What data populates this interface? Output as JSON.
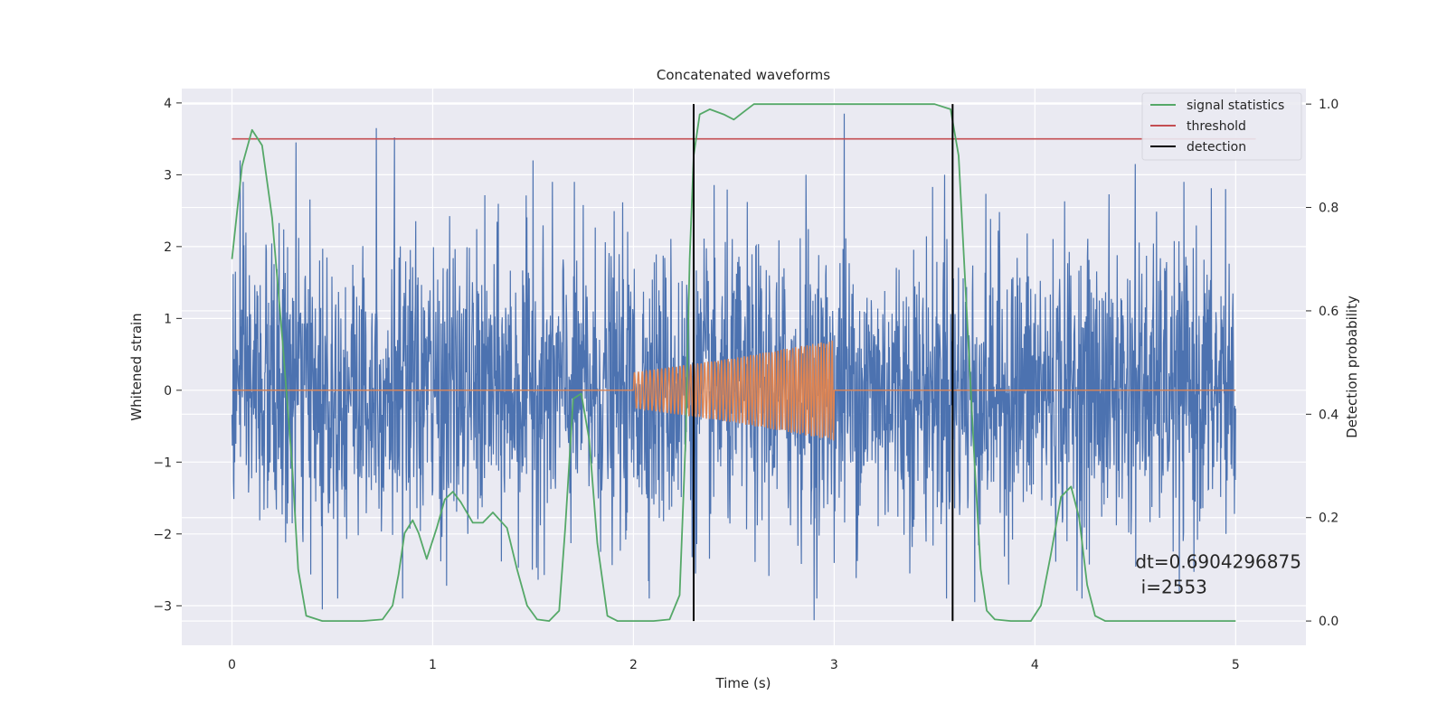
{
  "chart_data": {
    "type": "line",
    "title": "Concatenated waveforms",
    "xlabel": "Time (s)",
    "ylabel": "Whitened strain",
    "y2label": "Detection probability",
    "xlim": [
      -0.25,
      5.35
    ],
    "ylim": [
      -3.55,
      4.2
    ],
    "y2lim": [
      -0.047,
      1.03
    ],
    "xticks": [
      0,
      1,
      2,
      3,
      4,
      5
    ],
    "yticks": [
      -3,
      -2,
      -1,
      0,
      1,
      2,
      3,
      4
    ],
    "y2ticks": [
      0.0,
      0.2,
      0.4,
      0.6,
      0.8,
      1.0
    ],
    "y2ticklabels": [
      "0.0",
      "0.2",
      "0.4",
      "0.6",
      "0.8",
      "1.0"
    ],
    "ytick_minus_labels": [
      "−3",
      "−2",
      "−1",
      "0",
      "1",
      "2",
      "3",
      "4"
    ],
    "grid": true,
    "legend_placement": "upper-right",
    "colors": {
      "background": "#eaeaf2",
      "noise": "#4c72b0",
      "injection": "#dd8452",
      "signal_statistics": "#55a868",
      "threshold": "#c44e52",
      "detection": "#000000"
    },
    "series": [
      {
        "name": "",
        "role": "whitened-noise",
        "x_range": [
          0,
          5
        ],
        "amplitude_typical": 1.0,
        "peaks": [
          [
            0.04,
            3.2
          ],
          [
            0.32,
            3.45
          ],
          [
            0.72,
            3.65
          ],
          [
            0.81,
            3.52
          ],
          [
            1.5,
            3.2
          ],
          [
            2.86,
            3.0
          ],
          [
            3.05,
            3.85
          ],
          [
            3.55,
            3.0
          ],
          [
            4.5,
            3.15
          ],
          [
            4.95,
            2.8
          ]
        ],
        "troughs": [
          [
            0.45,
            -3.05
          ],
          [
            0.85,
            -2.9
          ],
          [
            2.9,
            -3.2
          ],
          [
            3.7,
            -2.95
          ],
          [
            4.72,
            -2.8
          ]
        ]
      },
      {
        "name": "",
        "role": "injected-chirp",
        "x": [
          0,
          2.0,
          2.0,
          2.5,
          3.0,
          3.0,
          5.0
        ],
        "envelope": [
          0,
          0,
          0.25,
          0.45,
          0.7,
          0,
          0
        ]
      },
      {
        "name": "signal statistics",
        "axis": "right",
        "x": [
          0,
          0.05,
          0.1,
          0.15,
          0.2,
          0.25,
          0.3,
          0.33,
          0.37,
          0.45,
          0.55,
          0.65,
          0.75,
          0.8,
          0.83,
          0.86,
          0.9,
          0.93,
          0.97,
          1.02,
          1.06,
          1.1,
          1.14,
          1.2,
          1.25,
          1.3,
          1.37,
          1.42,
          1.47,
          1.52,
          1.58,
          1.63,
          1.66,
          1.7,
          1.74,
          1.78,
          1.82,
          1.87,
          1.92,
          2.0,
          2.1,
          2.18,
          2.23,
          2.26,
          2.28,
          2.3,
          2.33,
          2.38,
          2.45,
          2.5,
          2.55,
          2.6,
          2.7,
          3.0,
          3.3,
          3.5,
          3.58,
          3.62,
          3.66,
          3.7,
          3.73,
          3.76,
          3.8,
          3.88,
          3.98,
          4.03,
          4.08,
          4.13,
          4.18,
          4.22,
          4.26,
          4.3,
          4.35,
          4.45,
          4.6,
          4.8,
          5.0
        ],
        "y": [
          0.7,
          0.88,
          0.95,
          0.92,
          0.78,
          0.55,
          0.3,
          0.1,
          0.01,
          0.0,
          0.0,
          0.0,
          0.003,
          0.03,
          0.09,
          0.17,
          0.195,
          0.17,
          0.12,
          0.18,
          0.235,
          0.25,
          0.23,
          0.19,
          0.19,
          0.21,
          0.18,
          0.1,
          0.03,
          0.003,
          0.0,
          0.02,
          0.18,
          0.43,
          0.44,
          0.35,
          0.15,
          0.01,
          0.0,
          0.0,
          0.0,
          0.003,
          0.05,
          0.35,
          0.7,
          0.9,
          0.98,
          0.99,
          0.98,
          0.97,
          0.985,
          1.0,
          1.0,
          1.0,
          1.0,
          1.0,
          0.99,
          0.9,
          0.6,
          0.3,
          0.1,
          0.02,
          0.003,
          0.0,
          0.0,
          0.03,
          0.13,
          0.24,
          0.26,
          0.2,
          0.07,
          0.01,
          0.0,
          0.0,
          0.0,
          0.0,
          0.0
        ]
      },
      {
        "name": "threshold",
        "axis": "left",
        "x": [
          0,
          5.1
        ],
        "y": [
          3.5,
          3.5
        ]
      },
      {
        "name": "detection",
        "axis": "right",
        "vlines": [
          2.3,
          3.59
        ],
        "ymin": 0.0,
        "ymax": 1.0
      }
    ],
    "annotation": {
      "line1": "dt=0.6904296875",
      "line2": " i=2553",
      "x_data": 4.5,
      "y_data": -2.4
    }
  }
}
